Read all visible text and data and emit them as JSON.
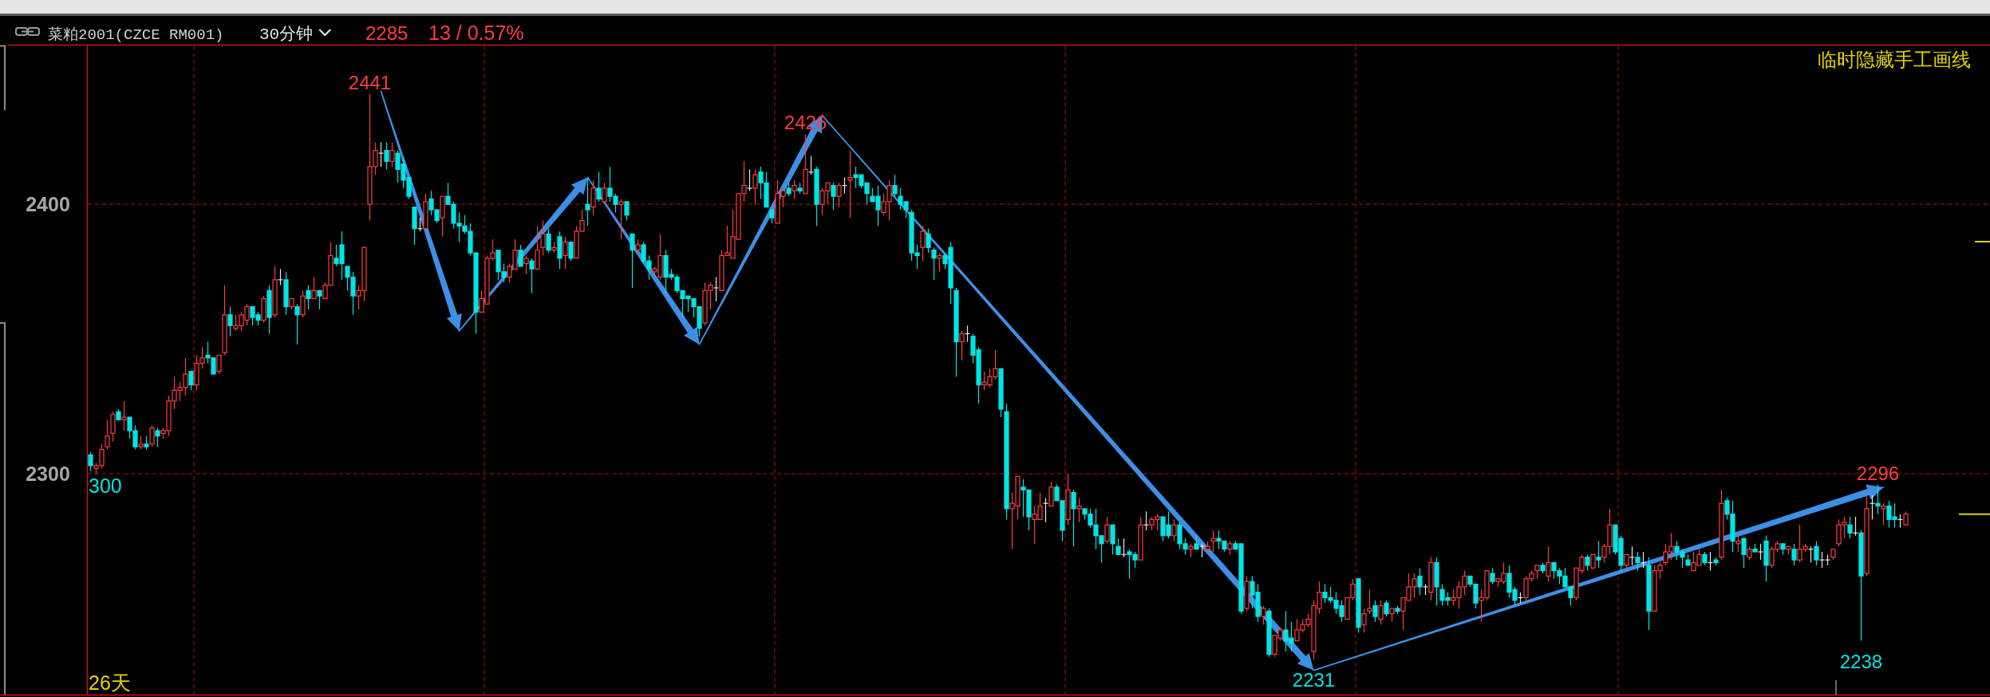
{
  "chart_data": {
    "type": "candlestick",
    "title": "菜粕2001(CZCE RM001)",
    "subtitle": "30分钟",
    "categories": [
      null,
      null,
      null,
      null,
      null,
      null,
      null,
      null,
      null,
      null,
      null,
      null,
      null,
      null,
      null,
      null,
      null,
      null,
      null,
      null,
      null,
      null,
      null,
      null,
      null,
      null,
      null,
      null,
      null,
      null,
      null,
      null,
      null,
      null,
      null,
      null,
      null,
      null,
      null,
      null,
      null,
      null,
      null,
      null,
      null,
      null,
      null,
      null,
      null,
      null,
      null,
      null,
      null,
      null,
      null,
      null,
      null,
      null,
      null,
      null,
      null,
      null,
      null,
      null,
      null,
      null,
      null,
      null,
      null,
      null,
      null,
      null,
      null,
      null,
      null,
      null,
      null,
      null,
      null,
      null,
      null,
      null,
      null,
      null,
      null,
      null,
      null,
      null,
      null,
      null,
      null,
      null,
      null,
      null,
      null,
      null,
      null,
      null,
      null,
      null,
      null,
      null,
      null,
      null,
      null,
      null,
      null,
      null,
      null,
      null,
      null,
      null,
      null,
      null,
      null,
      null,
      null,
      null,
      null,
      null,
      null,
      null,
      null,
      null,
      null,
      null,
      null,
      null,
      null,
      null,
      null,
      null,
      null,
      null,
      null,
      null,
      null,
      null,
      null,
      null,
      null,
      null,
      null,
      null,
      null,
      null,
      null,
      null,
      null,
      null,
      null,
      null,
      null,
      null,
      null,
      null,
      null,
      null,
      null,
      null,
      null,
      null,
      null,
      null,
      null,
      null,
      null,
      null,
      null,
      null,
      null,
      null,
      null,
      null,
      null,
      null,
      null,
      null,
      null,
      null,
      null,
      null,
      null,
      null,
      null,
      null,
      null,
      null,
      null,
      null,
      null,
      null,
      null,
      null,
      null,
      null,
      null,
      null,
      null,
      null,
      null,
      null,
      null,
      null,
      null,
      null,
      null,
      null,
      null,
      null,
      null,
      null,
      null,
      null,
      null,
      null,
      null,
      null,
      null,
      null,
      null,
      null,
      null,
      null,
      null,
      null,
      null,
      null,
      null,
      null,
      null,
      null,
      null,
      null,
      null,
      null,
      null,
      null,
      null,
      null,
      null,
      null,
      null,
      null,
      null,
      null,
      null,
      null,
      null,
      null,
      null,
      null,
      null,
      null,
      null,
      null,
      null,
      null,
      null,
      null,
      null,
      null,
      null,
      null,
      null,
      null,
      null,
      null,
      null,
      null,
      null,
      null,
      null,
      null,
      null,
      null,
      null,
      null,
      null,
      null,
      null,
      null,
      null,
      null,
      null,
      null,
      null,
      null,
      null,
      null,
      null,
      null,
      null,
      null,
      null,
      null,
      null,
      null,
      null,
      null,
      null,
      null,
      null,
      null,
      null,
      null,
      null,
      null,
      null,
      null,
      null,
      null,
      null,
      null,
      null,
      null,
      null,
      null,
      null,
      null,
      null,
      null,
      null,
      null,
      null,
      null
    ],
    "ohlc": [
      [
        2307,
        2308,
        2301,
        2303
      ],
      [
        2302,
        2304,
        2300,
        2303
      ],
      [
        2303,
        2311,
        2302,
        2309
      ],
      [
        2310,
        2320,
        2309,
        2314
      ],
      [
        2315,
        2323,
        2312,
        2322
      ],
      [
        2323,
        2324,
        2320,
        2320
      ],
      [
        2320,
        2327,
        2316,
        2321
      ],
      [
        2321,
        2321,
        2313,
        2316
      ],
      [
        2316,
        2318,
        2309,
        2310
      ],
      [
        2310,
        2314,
        2309,
        2311
      ],
      [
        2311,
        2314,
        2309,
        2310
      ],
      [
        2311,
        2318,
        2310,
        2317
      ],
      [
        2316,
        2317,
        2310,
        2314
      ],
      [
        2315,
        2317,
        2313,
        2316
      ],
      [
        2316,
        2329,
        2314,
        2327
      ],
      [
        2327,
        2336,
        2324,
        2331
      ],
      [
        2331,
        2334,
        2327,
        2332
      ],
      [
        2332,
        2343,
        2329,
        2337
      ],
      [
        2338,
        2338,
        2331,
        2333
      ],
      [
        2333,
        2344,
        2331,
        2341
      ],
      [
        2341,
        2347,
        2339,
        2343
      ],
      [
        2344,
        2349,
        2341,
        2343
      ],
      [
        2343,
        2343,
        2337,
        2337
      ],
      [
        2338,
        2344,
        2337,
        2344
      ],
      [
        2345,
        2370,
        2344,
        2359
      ],
      [
        2359,
        2362,
        2351,
        2355
      ],
      [
        2354,
        2359,
        2353,
        2355
      ],
      [
        2355,
        2360,
        2353,
        2359
      ],
      [
        2357,
        2363,
        2355,
        2362
      ],
      [
        2362,
        2362,
        2355,
        2358
      ],
      [
        2359,
        2360,
        2355,
        2357
      ],
      [
        2357,
        2366,
        2356,
        2365
      ],
      [
        2368,
        2370,
        2352,
        2358
      ],
      [
        2359,
        2377,
        2358,
        2372
      ],
      [
        2372,
        2376,
        2370,
        2372
      ],
      [
        2372,
        2375,
        2359,
        2362
      ],
      [
        2362,
        2365,
        2361,
        2365
      ],
      [
        2362,
        2363,
        2348,
        2359
      ],
      [
        2359,
        2368,
        2358,
        2366
      ],
      [
        2368,
        2370,
        2361,
        2365
      ],
      [
        2365,
        2373,
        2365,
        2368
      ],
      [
        2368,
        2368,
        2361,
        2366
      ],
      [
        2365,
        2371,
        2365,
        2370
      ],
      [
        2370,
        2386,
        2370,
        2381
      ],
      [
        2380,
        2385,
        2377,
        2378
      ],
      [
        2385,
        2390,
        2372,
        2378
      ],
      [
        2377,
        2377,
        2368,
        2373
      ],
      [
        2373,
        2375,
        2359,
        2366
      ],
      [
        2366,
        2370,
        2361,
        2368
      ],
      [
        2368,
        2384,
        2364,
        2384
      ],
      [
        2400,
        2441,
        2394,
        2414
      ],
      [
        2414,
        2423,
        2411,
        2420
      ],
      [
        2419,
        2423,
        2414,
        2419
      ],
      [
        2420,
        2423,
        2413,
        2416
      ],
      [
        2416,
        2423,
        2414,
        2420
      ],
      [
        2419,
        2420,
        2408,
        2413
      ],
      [
        2415,
        2417,
        2406,
        2409
      ],
      [
        2410,
        2410,
        2402,
        2403
      ],
      [
        2399,
        2399,
        2385,
        2391
      ],
      [
        2391,
        2395,
        2390,
        2391
      ],
      [
        2391,
        2404,
        2391,
        2401
      ],
      [
        2402,
        2405,
        2396,
        2398
      ],
      [
        2398,
        2398,
        2393,
        2394
      ],
      [
        2395,
        2403,
        2388,
        2403
      ],
      [
        2403,
        2408,
        2400,
        2400
      ],
      [
        2400,
        2401,
        2391,
        2393
      ],
      [
        2393,
        2397,
        2386,
        2392
      ],
      [
        2392,
        2396,
        2389,
        2390
      ],
      [
        2390,
        2393,
        2381,
        2382
      ],
      [
        2382,
        2382,
        2352,
        2360
      ],
      [
        2360,
        2368,
        2360,
        2365
      ],
      [
        2363,
        2381,
        2363,
        2380
      ],
      [
        2380,
        2387,
        2379,
        2382
      ],
      [
        2383,
        2383,
        2372,
        2375
      ],
      [
        2375,
        2378,
        2371,
        2373
      ],
      [
        2373,
        2378,
        2371,
        2377
      ],
      [
        2376,
        2387,
        2376,
        2383
      ],
      [
        2383,
        2385,
        2377,
        2377
      ],
      [
        2378,
        2381,
        2374,
        2380
      ],
      [
        2379,
        2380,
        2367,
        2376
      ],
      [
        2376,
        2392,
        2376,
        2383
      ],
      [
        2384,
        2394,
        2381,
        2389
      ],
      [
        2389,
        2391,
        2382,
        2383
      ],
      [
        2383,
        2386,
        2382,
        2384
      ],
      [
        2388,
        2390,
        2376,
        2380
      ],
      [
        2381,
        2388,
        2376,
        2386
      ],
      [
        2386,
        2386,
        2379,
        2380
      ],
      [
        2380,
        2392,
        2380,
        2390
      ],
      [
        2390,
        2398,
        2390,
        2394
      ],
      [
        2400,
        2410,
        2392,
        2398
      ],
      [
        2399,
        2409,
        2396,
        2406
      ],
      [
        2406,
        2412,
        2401,
        2402
      ],
      [
        2401,
        2408,
        2401,
        2406
      ],
      [
        2406,
        2414,
        2401,
        2403
      ],
      [
        2403,
        2404,
        2397,
        2400
      ],
      [
        2400,
        2402,
        2387,
        2401
      ],
      [
        2401,
        2401,
        2394,
        2396
      ],
      [
        2389,
        2389,
        2369,
        2383
      ],
      [
        2383,
        2387,
        2382,
        2385
      ],
      [
        2385,
        2386,
        2378,
        2379
      ],
      [
        2379,
        2381,
        2372,
        2376
      ],
      [
        2375,
        2377,
        2374,
        2376
      ],
      [
        2373,
        2389,
        2372,
        2381
      ],
      [
        2381,
        2383,
        2367,
        2373
      ],
      [
        2374,
        2376,
        2372,
        2373
      ],
      [
        2373,
        2374,
        2367,
        2368
      ],
      [
        2368,
        2368,
        2358,
        2365
      ],
      [
        2366,
        2366,
        2360,
        2365
      ],
      [
        2365,
        2365,
        2358,
        2362
      ],
      [
        2362,
        2362,
        2351,
        2354
      ],
      [
        2356,
        2371,
        2355,
        2368
      ],
      [
        2368,
        2371,
        2361,
        2370
      ],
      [
        2369,
        2373,
        2364,
        2369
      ],
      [
        2368,
        2383,
        2368,
        2381
      ],
      [
        2381,
        2392,
        2381,
        2382
      ],
      [
        2380,
        2398,
        2380,
        2388
      ],
      [
        2387,
        2404,
        2387,
        2404
      ],
      [
        2404,
        2416,
        2401,
        2407
      ],
      [
        2406,
        2413,
        2405,
        2406
      ],
      [
        2406,
        2413,
        2400,
        2411
      ],
      [
        2412,
        2414,
        2402,
        2408
      ],
      [
        2408,
        2412,
        2399,
        2399
      ],
      [
        2398,
        2398,
        2393,
        2395
      ],
      [
        2393,
        2409,
        2393,
        2404
      ],
      [
        2403,
        2406,
        2399,
        2405
      ],
      [
        2406,
        2408,
        2403,
        2404
      ],
      [
        2405,
        2409,
        2402,
        2407
      ],
      [
        2406,
        2408,
        2404,
        2405
      ],
      [
        2404,
        2426,
        2404,
        2413
      ],
      [
        2412,
        2418,
        2411,
        2412
      ],
      [
        2413,
        2414,
        2392,
        2400
      ],
      [
        2400,
        2406,
        2396,
        2405
      ],
      [
        2405,
        2408,
        2400,
        2408
      ],
      [
        2407,
        2408,
        2398,
        2403
      ],
      [
        2403,
        2408,
        2399,
        2407
      ],
      [
        2407,
        2410,
        2404,
        2407
      ],
      [
        2409,
        2420,
        2395,
        2410
      ],
      [
        2411,
        2414,
        2406,
        2410
      ],
      [
        2411,
        2411,
        2406,
        2407
      ],
      [
        2408,
        2408,
        2400,
        2404
      ],
      [
        2403,
        2406,
        2401,
        2401
      ],
      [
        2403,
        2407,
        2392,
        2398
      ],
      [
        2397,
        2404,
        2396,
        2401
      ],
      [
        2401,
        2409,
        2394,
        2407
      ],
      [
        2407,
        2411,
        2403,
        2404
      ],
      [
        2403,
        2406,
        2398,
        2400
      ],
      [
        2401,
        2401,
        2395,
        2398
      ],
      [
        2397,
        2398,
        2379,
        2382
      ],
      [
        2382,
        2385,
        2376,
        2381
      ],
      [
        2384,
        2392,
        2379,
        2390
      ],
      [
        2389,
        2391,
        2382,
        2384
      ],
      [
        2383,
        2384,
        2372,
        2380
      ],
      [
        2380,
        2382,
        2375,
        2381
      ],
      [
        2381,
        2382,
        2376,
        2378
      ],
      [
        2384,
        2386,
        2363,
        2369
      ],
      [
        2368,
        2369,
        2336,
        2349
      ],
      [
        2349,
        2353,
        2342,
        2352
      ],
      [
        2352,
        2355,
        2349,
        2352
      ],
      [
        2351,
        2352,
        2341,
        2344
      ],
      [
        2346,
        2347,
        2326,
        2333
      ],
      [
        2333,
        2338,
        2331,
        2334
      ],
      [
        2333,
        2339,
        2332,
        2336
      ],
      [
        2336,
        2346,
        2335,
        2339
      ],
      [
        2339,
        2339,
        2321,
        2324
      ],
      [
        2323,
        2326,
        2283,
        2287
      ],
      [
        2287,
        2293,
        2272,
        2289
      ],
      [
        2288,
        2299,
        2283,
        2299
      ],
      [
        2295,
        2298,
        2284,
        2294
      ],
      [
        2294,
        2294,
        2279,
        2284
      ],
      [
        2283,
        2288,
        2274,
        2285
      ],
      [
        2283,
        2293,
        2283,
        2288
      ],
      [
        2289,
        2291,
        2282,
        2289
      ],
      [
        2288,
        2297,
        2288,
        2295
      ],
      [
        2295,
        2296,
        2290,
        2290
      ],
      [
        2290,
        2290,
        2275,
        2279
      ],
      [
        2283,
        2300,
        2281,
        2294
      ],
      [
        2293,
        2294,
        2273,
        2287
      ],
      [
        2287,
        2291,
        2282,
        2288
      ],
      [
        2287,
        2287,
        2283,
        2285
      ],
      [
        2285,
        2287,
        2280,
        2281
      ],
      [
        2281,
        2287,
        2272,
        2277
      ],
      [
        2277,
        2277,
        2267,
        2274
      ],
      [
        2275,
        2284,
        2274,
        2281
      ],
      [
        2281,
        2281,
        2270,
        2274
      ],
      [
        2273,
        2276,
        2270,
        2270
      ],
      [
        2270,
        2276,
        2269,
        2270
      ],
      [
        2271,
        2272,
        2261,
        2270
      ],
      [
        2270,
        2271,
        2265,
        2268
      ],
      [
        2268,
        2284,
        2268,
        2281
      ],
      [
        2281,
        2286,
        2279,
        2281
      ],
      [
        2281,
        2284,
        2279,
        2283
      ],
      [
        2283,
        2285,
        2279,
        2284
      ],
      [
        2284,
        2284,
        2275,
        2277
      ],
      [
        2281,
        2286,
        2276,
        2277
      ],
      [
        2277,
        2283,
        2275,
        2281
      ],
      [
        2281,
        2282,
        2272,
        2274
      ],
      [
        2274,
        2276,
        2270,
        2272
      ],
      [
        2272,
        2274,
        2269,
        2273
      ],
      [
        2274,
        2277,
        2272,
        2272
      ],
      [
        2273,
        2274,
        2269,
        2273
      ],
      [
        2272,
        2275,
        2271,
        2273
      ],
      [
        2275,
        2279,
        2271,
        2276
      ],
      [
        2276,
        2279,
        2272,
        2275
      ],
      [
        2275,
        2275,
        2271,
        2272
      ],
      [
        2272,
        2275,
        2270,
        2274
      ],
      [
        2274,
        2275,
        2272,
        2272
      ],
      [
        2274,
        2274,
        2248,
        2249
      ],
      [
        2250,
        2262,
        2249,
        2260
      ],
      [
        2260,
        2262,
        2250,
        2255
      ],
      [
        2256,
        2259,
        2245,
        2247
      ],
      [
        2247,
        2251,
        2244,
        2250
      ],
      [
        2249,
        2250,
        2232,
        2233
      ],
      [
        2233,
        2240,
        2232,
        2240
      ],
      [
        2239,
        2243,
        2238,
        2242
      ],
      [
        2242,
        2249,
        2234,
        2238
      ],
      [
        2239,
        2245,
        2234,
        2237
      ],
      [
        2238,
        2246,
        2238,
        2242
      ],
      [
        2242,
        2246,
        2241,
        2244
      ],
      [
        2244,
        2248,
        2243,
        2246
      ],
      [
        2234,
        2253,
        2231,
        2251
      ],
      [
        2250,
        2260,
        2248,
        2256
      ],
      [
        2256,
        2259,
        2252,
        2254
      ],
      [
        2254,
        2258,
        2252,
        2253
      ],
      [
        2253,
        2256,
        2248,
        2250
      ],
      [
        2251,
        2253,
        2245,
        2247
      ],
      [
        2246,
        2254,
        2246,
        2254
      ],
      [
        2254,
        2261,
        2253,
        2259
      ],
      [
        2261,
        2261,
        2241,
        2243
      ],
      [
        2244,
        2250,
        2241,
        2248
      ],
      [
        2249,
        2257,
        2248,
        2250
      ],
      [
        2251,
        2253,
        2245,
        2247
      ],
      [
        2246,
        2253,
        2244,
        2251
      ],
      [
        2252,
        2253,
        2247,
        2248
      ],
      [
        2248,
        2250,
        2245,
        2250
      ],
      [
        2250,
        2251,
        2248,
        2249
      ],
      [
        2249,
        2254,
        2242,
        2254
      ],
      [
        2253,
        2263,
        2253,
        2258
      ],
      [
        2258,
        2263,
        2254,
        2261
      ],
      [
        2262,
        2265,
        2255,
        2258
      ],
      [
        2258,
        2259,
        2255,
        2258
      ],
      [
        2256,
        2269,
        2253,
        2267
      ],
      [
        2267,
        2269,
        2251,
        2258
      ],
      [
        2257,
        2259,
        2251,
        2253
      ],
      [
        2254,
        2256,
        2251,
        2253
      ],
      [
        2253,
        2257,
        2251,
        2254
      ],
      [
        2254,
        2260,
        2250,
        2258
      ],
      [
        2258,
        2264,
        2255,
        2262
      ],
      [
        2262,
        2262,
        2258,
        2259
      ],
      [
        2259,
        2259,
        2250,
        2252
      ],
      [
        2253,
        2257,
        2245,
        2254
      ],
      [
        2254,
        2264,
        2253,
        2264
      ],
      [
        2263,
        2265,
        2259,
        2260
      ],
      [
        2260,
        2261,
        2258,
        2261
      ],
      [
        2260,
        2267,
        2259,
        2263
      ],
      [
        2263,
        2266,
        2254,
        2256
      ],
      [
        2257,
        2258,
        2251,
        2253
      ],
      [
        2254,
        2256,
        2252,
        2254
      ],
      [
        2254,
        2262,
        2253,
        2261
      ],
      [
        2261,
        2264,
        2260,
        2263
      ],
      [
        2264,
        2266,
        2261,
        2266
      ],
      [
        2266,
        2267,
        2263,
        2264
      ],
      [
        2262,
        2273,
        2260,
        2267
      ],
      [
        2267,
        2267,
        2261,
        2264
      ],
      [
        2264,
        2265,
        2259,
        2262
      ],
      [
        2262,
        2265,
        2258,
        2258
      ],
      [
        2258,
        2258,
        2251,
        2254
      ],
      [
        2254,
        2265,
        2253,
        2265
      ],
      [
        2264,
        2270,
        2263,
        2269
      ],
      [
        2269,
        2270,
        2264,
        2266
      ],
      [
        2265,
        2270,
        2265,
        2270
      ],
      [
        2269,
        2275,
        2265,
        2268
      ],
      [
        2269,
        2274,
        2267,
        2273
      ],
      [
        2273,
        2287,
        2270,
        2281
      ],
      [
        2281,
        2281,
        2270,
        2271
      ],
      [
        2276,
        2277,
        2264,
        2266
      ],
      [
        2266,
        2270,
        2265,
        2270
      ],
      [
        2269,
        2273,
        2266,
        2269
      ],
      [
        2269,
        2271,
        2264,
        2267
      ],
      [
        2267,
        2271,
        2265,
        2267
      ],
      [
        2266,
        2269,
        2242,
        2249
      ],
      [
        2249,
        2266,
        2249,
        2264
      ],
      [
        2264,
        2267,
        2261,
        2266
      ],
      [
        2267,
        2274,
        2266,
        2271
      ],
      [
        2271,
        2278,
        2268,
        2273
      ],
      [
        2273,
        2275,
        2268,
        2271
      ],
      [
        2271,
        2272,
        2265,
        2269
      ],
      [
        2268,
        2270,
        2266,
        2266
      ],
      [
        2264,
        2271,
        2264,
        2267
      ],
      [
        2266,
        2272,
        2266,
        2270
      ],
      [
        2270,
        2271,
        2266,
        2267
      ],
      [
        2267,
        2271,
        2264,
        2267
      ],
      [
        2268,
        2269,
        2266,
        2267
      ],
      [
        2269,
        2294,
        2268,
        2289
      ],
      [
        2290,
        2291,
        2283,
        2285
      ],
      [
        2285,
        2290,
        2271,
        2275
      ],
      [
        2274,
        2277,
        2271,
        2275
      ],
      [
        2276,
        2276,
        2265,
        2270
      ],
      [
        2269,
        2273,
        2268,
        2272
      ],
      [
        2272,
        2274,
        2271,
        2271
      ],
      [
        2271,
        2274,
        2268,
        2271
      ],
      [
        2275,
        2277,
        2260,
        2266
      ],
      [
        2266,
        2273,
        2265,
        2272
      ],
      [
        2272,
        2275,
        2271,
        2274
      ],
      [
        2274,
        2274,
        2270,
        2272
      ],
      [
        2272,
        2273,
        2270,
        2273
      ],
      [
        2272,
        2274,
        2266,
        2268
      ],
      [
        2268,
        2281,
        2267,
        2272
      ],
      [
        2272,
        2274,
        2271,
        2273
      ],
      [
        2272,
        2273,
        2267,
        2272
      ],
      [
        2273,
        2275,
        2266,
        2268
      ],
      [
        2268,
        2271,
        2265,
        2268
      ],
      [
        2268,
        2270,
        2266,
        2268
      ],
      [
        2269,
        2272,
        2268,
        2272
      ],
      [
        2274,
        2283,
        2273,
        2281
      ],
      [
        2281,
        2284,
        2276,
        2282
      ],
      [
        2281,
        2284,
        2276,
        2278
      ],
      [
        2278,
        2284,
        2277,
        2278
      ],
      [
        2278,
        2279,
        2238,
        2262
      ],
      [
        2263,
        2292,
        2262,
        2287
      ],
      [
        2289,
        2292,
        2283,
        2289
      ],
      [
        2289,
        2296,
        2285,
        2288
      ],
      [
        2287,
        2289,
        2281,
        2288
      ],
      [
        2288,
        2290,
        2280,
        2283
      ],
      [
        2284,
        2289,
        2280,
        2283
      ],
      [
        2283,
        2285,
        2280,
        2283
      ],
      [
        2281,
        2286,
        2281,
        2285
      ]
    ],
    "colors": [
      "#00e4e4",
      "#ff3c3c",
      "#ff3c3c",
      "#ff3c3c",
      "#ff3c3c",
      "#00e4e4",
      "#ff3c3c",
      "#00e4e4",
      "#00e4e4",
      "#ff3c3c",
      "#00e4e4",
      "#ff3c3c",
      "#00e4e4",
      "#ff3c3c",
      "#ff3c3c",
      "#ff3c3c",
      "#ff3c3c",
      "#ff3c3c",
      "#00e4e4",
      "#ff3c3c",
      "#ff3c3c",
      "#00e4e4",
      "#00e4e4",
      "#ff3c3c",
      "#ff3c3c",
      "#00e4e4",
      "#ff3c3c",
      "#ff3c3c",
      "#ff3c3c",
      "#00e4e4",
      "#00e4e4",
      "#ff3c3c",
      "#00e4e4",
      "#ff3c3c",
      "#e6e6e6",
      "#00e4e4",
      "#ff3c3c",
      "#00e4e4",
      "#ff3c3c",
      "#00e4e4",
      "#ff3c3c",
      "#00e4e4",
      "#ff3c3c",
      "#ff3c3c",
      "#00e4e4",
      "#00e4e4",
      "#00e4e4",
      "#00e4e4",
      "#ff3c3c",
      "#ff3c3c",
      "#ff3c3c",
      "#ff3c3c",
      "#e6e6e6",
      "#00e4e4",
      "#ff3c3c",
      "#00e4e4",
      "#00e4e4",
      "#00e4e4",
      "#00e4e4",
      "#e6e6e6",
      "#ff3c3c",
      "#00e4e4",
      "#00e4e4",
      "#ff3c3c",
      "#00e4e4",
      "#00e4e4",
      "#00e4e4",
      "#00e4e4",
      "#00e4e4",
      "#00e4e4",
      "#ff3c3c",
      "#ff3c3c",
      "#ff3c3c",
      "#00e4e4",
      "#00e4e4",
      "#ff3c3c",
      "#ff3c3c",
      "#00e4e4",
      "#ff3c3c",
      "#00e4e4",
      "#ff3c3c",
      "#ff3c3c",
      "#00e4e4",
      "#ff3c3c",
      "#00e4e4",
      "#ff3c3c",
      "#00e4e4",
      "#ff3c3c",
      "#ff3c3c",
      "#00e4e4",
      "#ff3c3c",
      "#00e4e4",
      "#ff3c3c",
      "#00e4e4",
      "#00e4e4",
      "#ff3c3c",
      "#00e4e4",
      "#00e4e4",
      "#ff3c3c",
      "#00e4e4",
      "#00e4e4",
      "#ff3c3c",
      "#ff3c3c",
      "#00e4e4",
      "#00e4e4",
      "#00e4e4",
      "#00e4e4",
      "#00e4e4",
      "#00e4e4",
      "#00e4e4",
      "#ff3c3c",
      "#ff3c3c",
      "#e6e6e6",
      "#ff3c3c",
      "#ff3c3c",
      "#ff3c3c",
      "#ff3c3c",
      "#ff3c3c",
      "#e6e6e6",
      "#ff3c3c",
      "#00e4e4",
      "#00e4e4",
      "#00e4e4",
      "#ff3c3c",
      "#ff3c3c",
      "#00e4e4",
      "#ff3c3c",
      "#00e4e4",
      "#ff3c3c",
      "#e6e6e6",
      "#00e4e4",
      "#ff3c3c",
      "#ff3c3c",
      "#00e4e4",
      "#ff3c3c",
      "#e6e6e6",
      "#ff3c3c",
      "#00e4e4",
      "#00e4e4",
      "#00e4e4",
      "#00e4e4",
      "#00e4e4",
      "#ff3c3c",
      "#ff3c3c",
      "#00e4e4",
      "#00e4e4",
      "#00e4e4",
      "#00e4e4",
      "#00e4e4",
      "#ff3c3c",
      "#00e4e4",
      "#00e4e4",
      "#ff3c3c",
      "#00e4e4",
      "#00e4e4",
      "#00e4e4",
      "#ff3c3c",
      "#e6e6e6",
      "#00e4e4",
      "#00e4e4",
      "#ff3c3c",
      "#ff3c3c",
      "#ff3c3c",
      "#00e4e4",
      "#00e4e4",
      "#ff3c3c",
      "#ff3c3c",
      "#00e4e4",
      "#00e4e4",
      "#ff3c3c",
      "#ff3c3c",
      "#e6e6e6",
      "#ff3c3c",
      "#00e4e4",
      "#00e4e4",
      "#ff3c3c",
      "#00e4e4",
      "#ff3c3c",
      "#00e4e4",
      "#00e4e4",
      "#00e4e4",
      "#00e4e4",
      "#ff3c3c",
      "#00e4e4",
      "#00e4e4",
      "#e6e6e6",
      "#00e4e4",
      "#00e4e4",
      "#ff3c3c",
      "#e6e6e6",
      "#ff3c3c",
      "#ff3c3c",
      "#00e4e4",
      "#00e4e4",
      "#ff3c3c",
      "#00e4e4",
      "#00e4e4",
      "#ff3c3c",
      "#00e4e4",
      "#e6e6e6",
      "#ff3c3c",
      "#ff3c3c",
      "#00e4e4",
      "#00e4e4",
      "#ff3c3c",
      "#00e4e4",
      "#00e4e4",
      "#ff3c3c",
      "#00e4e4",
      "#00e4e4",
      "#ff3c3c",
      "#00e4e4",
      "#ff3c3c",
      "#ff3c3c",
      "#00e4e4",
      "#00e4e4",
      "#ff3c3c",
      "#ff3c3c",
      "#ff3c3c",
      "#ff3c3c",
      "#ff3c3c",
      "#00e4e4",
      "#00e4e4",
      "#00e4e4",
      "#00e4e4",
      "#ff3c3c",
      "#ff3c3c",
      "#00e4e4",
      "#ff3c3c",
      "#ff3c3c",
      "#00e4e4",
      "#ff3c3c",
      "#00e4e4",
      "#ff3c3c",
      "#00e4e4",
      "#ff3c3c",
      "#ff3c3c",
      "#ff3c3c",
      "#00e4e4",
      "#e6e6e6",
      "#ff3c3c",
      "#00e4e4",
      "#00e4e4",
      "#00e4e4",
      "#ff3c3c",
      "#ff3c3c",
      "#ff3c3c",
      "#00e4e4",
      "#00e4e4",
      "#ff3c3c",
      "#ff3c3c",
      "#00e4e4",
      "#ff3c3c",
      "#ff3c3c",
      "#00e4e4",
      "#00e4e4",
      "#e6e6e6",
      "#ff3c3c",
      "#ff3c3c",
      "#ff3c3c",
      "#00e4e4",
      "#ff3c3c",
      "#00e4e4",
      "#00e4e4",
      "#00e4e4",
      "#00e4e4",
      "#ff3c3c",
      "#ff3c3c",
      "#00e4e4",
      "#ff3c3c",
      "#00e4e4",
      "#ff3c3c",
      "#ff3c3c",
      "#00e4e4",
      "#00e4e4",
      "#ff3c3c",
      "#e6e6e6",
      "#00e4e4",
      "#e6e6e6",
      "#00e4e4",
      "#ff3c3c",
      "#ff3c3c",
      "#ff3c3c",
      "#ff3c3c",
      "#00e4e4",
      "#00e4e4",
      "#00e4e4",
      "#ff3c3c",
      "#ff3c3c",
      "#00e4e4",
      "#e6e6e6",
      "#00e4e4",
      "#ff3c3c",
      "#00e4e4",
      "#00e4e4",
      "#ff3c3c",
      "#00e4e4",
      "#ff3c3c",
      "#00e4e4",
      "#e6e6e6",
      "#00e4e4",
      "#ff3c3c",
      "#ff3c3c",
      "#00e4e4",
      "#ff3c3c",
      "#00e4e4",
      "#ff3c3c",
      "#ff3c3c",
      "#e6e6e6",
      "#00e4e4",
      "#e6e6e6",
      "#e6e6e6",
      "#ff3c3c",
      "#ff3c3c",
      "#ff3c3c",
      "#00e4e4",
      "#e6e6e6",
      "#00e4e4",
      "#ff3c3c",
      "#e6e6e6",
      "#00e4e4",
      "#ff3c3c",
      "#00e4e4",
      "#00e4e4",
      "#e6e6e6",
      "#ff3c3c"
    ],
    "series": [
      {
        "type": "line",
        "color": "#3d8fe6",
        "values": [
          null,
          null,
          null,
          null,
          null,
          null,
          null,
          null,
          null,
          null,
          null,
          null,
          null,
          null,
          null,
          null,
          null,
          null,
          null,
          null,
          null,
          null,
          null,
          null,
          null,
          null,
          null,
          null,
          null,
          null,
          null,
          null,
          null,
          null,
          null,
          null,
          null,
          null,
          null,
          null,
          null,
          null,
          null,
          null,
          null,
          null,
          null,
          null,
          null,
          null,
          null,
          null,
          2442,
          null,
          null,
          null,
          null,
          null,
          null,
          null,
          null,
          null,
          null,
          null,
          null,
          null,
          2353,
          null,
          null,
          null,
          null,
          null,
          null,
          null,
          null,
          null,
          null,
          null,
          null,
          null,
          null,
          null,
          null,
          null,
          null,
          null,
          null,
          null,
          null,
          2410,
          null,
          null,
          null,
          null,
          null,
          null,
          null,
          null,
          null,
          null,
          null,
          null,
          null,
          null,
          null,
          null,
          null,
          null,
          null,
          2348,
          null,
          null,
          null,
          null,
          null,
          null,
          null,
          null,
          null,
          null,
          null,
          null,
          null,
          null,
          null,
          null,
          null,
          null,
          null,
          null,
          null,
          2433,
          null,
          null,
          null,
          null,
          null,
          null,
          null,
          null,
          null,
          null,
          null,
          null,
          null,
          null,
          null,
          null,
          null,
          null,
          null,
          null,
          null,
          null,
          null,
          null,
          null,
          null,
          null,
          null,
          null,
          null,
          null,
          null,
          null,
          null,
          null,
          null,
          null,
          null,
          null,
          null,
          null,
          null,
          null,
          null,
          null,
          null,
          null,
          null,
          null,
          null,
          null,
          null,
          null,
          null,
          null,
          null,
          null,
          null,
          null,
          null,
          null,
          null,
          null,
          null,
          null,
          null,
          null,
          null,
          null,
          null,
          null,
          null,
          null,
          null,
          null,
          null,
          null,
          null,
          null,
          null,
          null,
          null,
          null,
          null,
          null,
          null,
          null,
          2227,
          null,
          null,
          null,
          null,
          null,
          null,
          null,
          null,
          null,
          null,
          null,
          null,
          null,
          null,
          null,
          null,
          null,
          null,
          null,
          null,
          null,
          null,
          null,
          null,
          null,
          null,
          null,
          null,
          null,
          null,
          null,
          null,
          null,
          null,
          null,
          null,
          null,
          null,
          null,
          null,
          null,
          null,
          null,
          null,
          null,
          null,
          null,
          null,
          null,
          null,
          null,
          null,
          null,
          null,
          null,
          null,
          null,
          null,
          null,
          null,
          null,
          null,
          null,
          null,
          null,
          null,
          null,
          null,
          null,
          null,
          null,
          null,
          null,
          null,
          null,
          null,
          null,
          null,
          null,
          null,
          null,
          null,
          null,
          null,
          null,
          null,
          null,
          null,
          null,
          null,
          null,
          null,
          null,
          null,
          null,
          null,
          null,
          null,
          null,
          null,
          null,
          2295,
          null,
          null,
          null,
          null
        ]
      }
    ],
    "ylim": [
      2218,
      2459
    ],
    "yticks": [
      2400,
      2300
    ],
    "grid": "y",
    "tick_labels": "y",
    "annotations": [
      {
        "text": "2441",
        "y": 2441
      },
      {
        "text": "2426",
        "y": 2426
      },
      {
        "text": "2231",
        "y": 2231
      },
      {
        "text": "2296",
        "y": 2296
      },
      "2238",
      "300",
      "2285",
      "13 / 0.57%",
      "26天",
      "临时隐藏手工画线"
    ]
  }
}
